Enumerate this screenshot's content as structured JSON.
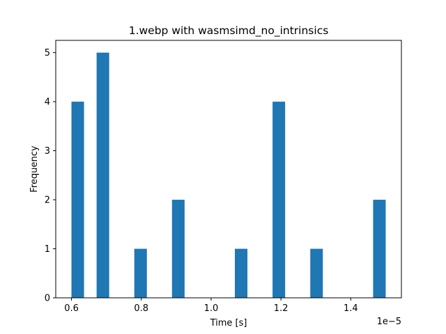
{
  "chart_data": {
    "type": "bar",
    "title": "1.webp with wasmsimd_no_intrinsics",
    "xlabel": "Time [s]",
    "ylabel": "Frequency",
    "x_offset_label": "1e−5",
    "x_scale": 1e-05,
    "xlim": [
      0.555,
      1.545
    ],
    "ylim": [
      0,
      5.25
    ],
    "x_ticks": [
      0.6,
      0.8,
      1.0,
      1.2,
      1.4
    ],
    "x_tick_labels": [
      "0.6",
      "0.8",
      "1.0",
      "1.2",
      "1.4"
    ],
    "y_ticks": [
      0,
      1,
      2,
      3,
      4,
      5
    ],
    "y_tick_labels": [
      "0",
      "1",
      "2",
      "3",
      "4",
      "5"
    ],
    "bar_color": "#1f77b4",
    "bin_width": 0.036,
    "bins": [
      {
        "x": 0.618,
        "count": 4
      },
      {
        "x": 0.69,
        "count": 5
      },
      {
        "x": 0.798,
        "count": 1
      },
      {
        "x": 0.906,
        "count": 2
      },
      {
        "x": 1.086,
        "count": 1
      },
      {
        "x": 1.194,
        "count": 4
      },
      {
        "x": 1.302,
        "count": 1
      },
      {
        "x": 1.482,
        "count": 2
      }
    ],
    "grid": false,
    "legend": "none"
  }
}
